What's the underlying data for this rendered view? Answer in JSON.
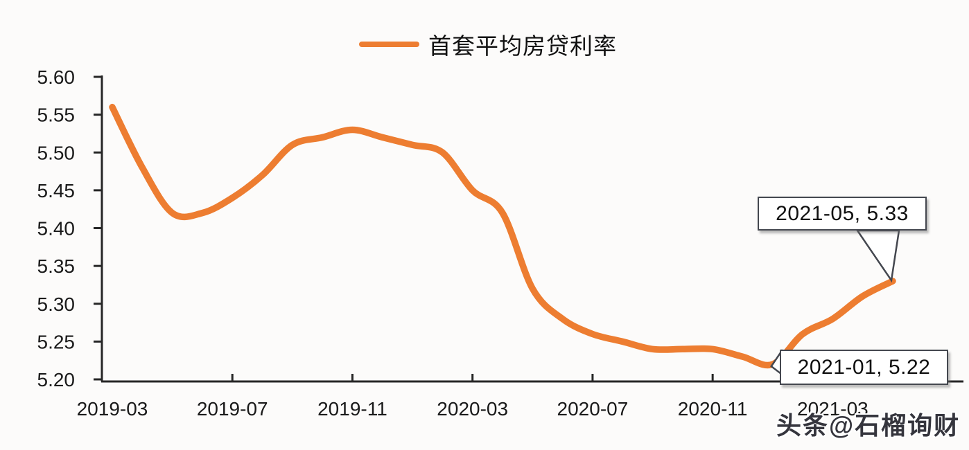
{
  "legend": {
    "label": "首套平均房贷利率",
    "marker_color": "#ED7D31"
  },
  "colors": {
    "line": "#ED7D31",
    "axis": "#262626",
    "tick_label": "#1a1a1a",
    "annotation_border": "#44474f",
    "watermark": "#35353d"
  },
  "annotations": [
    {
      "text": "2021-05, 5.33",
      "target_category": "2021-05",
      "target_value": 5.33
    },
    {
      "text": "2021-01, 5.22",
      "target_category": "2021-01",
      "target_value": 5.22
    }
  ],
  "watermark": {
    "text": "头条@石榴询财"
  },
  "chart_data": {
    "type": "line",
    "title": "",
    "xlabel": "",
    "ylabel": "",
    "grid": false,
    "smooth": true,
    "legend_position": "top",
    "ylim": [
      5.2,
      5.6
    ],
    "y_tick_step": 0.05,
    "y_tick_labels": [
      "5.60",
      "5.55",
      "5.50",
      "5.45",
      "5.40",
      "5.35",
      "5.30",
      "5.25",
      "5.20"
    ],
    "x_tick_labels": [
      "2019-03",
      "2019-07",
      "2019-11",
      "2020-03",
      "2020-07",
      "2020-11",
      "2021-03"
    ],
    "categories": [
      "2019-03",
      "2019-04",
      "2019-05",
      "2019-06",
      "2019-07",
      "2019-08",
      "2019-09",
      "2019-10",
      "2019-11",
      "2019-12",
      "2020-01",
      "2020-02",
      "2020-03",
      "2020-04",
      "2020-05",
      "2020-06",
      "2020-07",
      "2020-08",
      "2020-09",
      "2020-10",
      "2020-11",
      "2020-12",
      "2021-01",
      "2021-02",
      "2021-03",
      "2021-04",
      "2021-05"
    ],
    "series": [
      {
        "name": "首套平均房贷利率",
        "color": "#ED7D31",
        "values": [
          5.56,
          5.48,
          5.42,
          5.42,
          5.44,
          5.47,
          5.51,
          5.52,
          5.53,
          5.52,
          5.51,
          5.5,
          5.45,
          5.42,
          5.32,
          5.28,
          5.26,
          5.25,
          5.24,
          5.24,
          5.24,
          5.23,
          5.22,
          5.26,
          5.28,
          5.31,
          5.33
        ]
      }
    ]
  }
}
